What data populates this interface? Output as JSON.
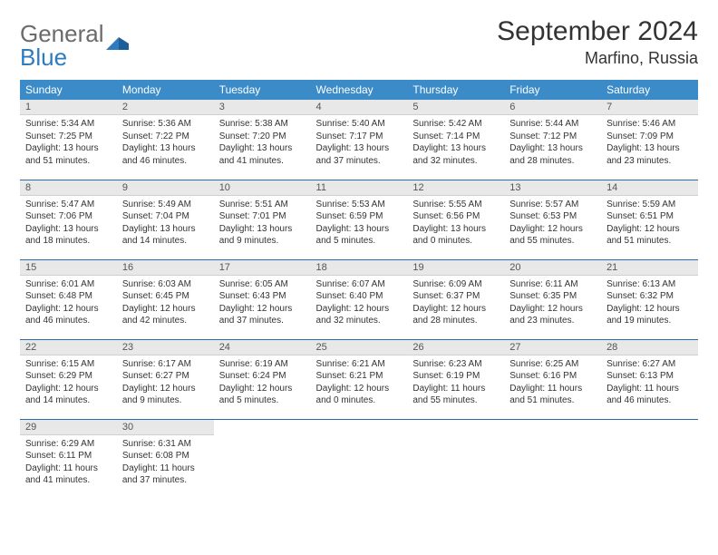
{
  "brand": {
    "name_a": "General",
    "name_b": "Blue"
  },
  "title": "September 2024",
  "location": "Marfino, Russia",
  "colors": {
    "header_bg": "#3b8bc8",
    "header_text": "#ffffff",
    "daynum_bg": "#e8e8e8",
    "row_divider": "#2e6da4",
    "logo_gray": "#6b6b6b",
    "logo_blue": "#2e7cc0"
  },
  "weekdays": [
    "Sunday",
    "Monday",
    "Tuesday",
    "Wednesday",
    "Thursday",
    "Friday",
    "Saturday"
  ],
  "days": [
    {
      "n": 1,
      "sr": "5:34 AM",
      "ss": "7:25 PM",
      "dl": "13 hours and 51 minutes."
    },
    {
      "n": 2,
      "sr": "5:36 AM",
      "ss": "7:22 PM",
      "dl": "13 hours and 46 minutes."
    },
    {
      "n": 3,
      "sr": "5:38 AM",
      "ss": "7:20 PM",
      "dl": "13 hours and 41 minutes."
    },
    {
      "n": 4,
      "sr": "5:40 AM",
      "ss": "7:17 PM",
      "dl": "13 hours and 37 minutes."
    },
    {
      "n": 5,
      "sr": "5:42 AM",
      "ss": "7:14 PM",
      "dl": "13 hours and 32 minutes."
    },
    {
      "n": 6,
      "sr": "5:44 AM",
      "ss": "7:12 PM",
      "dl": "13 hours and 28 minutes."
    },
    {
      "n": 7,
      "sr": "5:46 AM",
      "ss": "7:09 PM",
      "dl": "13 hours and 23 minutes."
    },
    {
      "n": 8,
      "sr": "5:47 AM",
      "ss": "7:06 PM",
      "dl": "13 hours and 18 minutes."
    },
    {
      "n": 9,
      "sr": "5:49 AM",
      "ss": "7:04 PM",
      "dl": "13 hours and 14 minutes."
    },
    {
      "n": 10,
      "sr": "5:51 AM",
      "ss": "7:01 PM",
      "dl": "13 hours and 9 minutes."
    },
    {
      "n": 11,
      "sr": "5:53 AM",
      "ss": "6:59 PM",
      "dl": "13 hours and 5 minutes."
    },
    {
      "n": 12,
      "sr": "5:55 AM",
      "ss": "6:56 PM",
      "dl": "13 hours and 0 minutes."
    },
    {
      "n": 13,
      "sr": "5:57 AM",
      "ss": "6:53 PM",
      "dl": "12 hours and 55 minutes."
    },
    {
      "n": 14,
      "sr": "5:59 AM",
      "ss": "6:51 PM",
      "dl": "12 hours and 51 minutes."
    },
    {
      "n": 15,
      "sr": "6:01 AM",
      "ss": "6:48 PM",
      "dl": "12 hours and 46 minutes."
    },
    {
      "n": 16,
      "sr": "6:03 AM",
      "ss": "6:45 PM",
      "dl": "12 hours and 42 minutes."
    },
    {
      "n": 17,
      "sr": "6:05 AM",
      "ss": "6:43 PM",
      "dl": "12 hours and 37 minutes."
    },
    {
      "n": 18,
      "sr": "6:07 AM",
      "ss": "6:40 PM",
      "dl": "12 hours and 32 minutes."
    },
    {
      "n": 19,
      "sr": "6:09 AM",
      "ss": "6:37 PM",
      "dl": "12 hours and 28 minutes."
    },
    {
      "n": 20,
      "sr": "6:11 AM",
      "ss": "6:35 PM",
      "dl": "12 hours and 23 minutes."
    },
    {
      "n": 21,
      "sr": "6:13 AM",
      "ss": "6:32 PM",
      "dl": "12 hours and 19 minutes."
    },
    {
      "n": 22,
      "sr": "6:15 AM",
      "ss": "6:29 PM",
      "dl": "12 hours and 14 minutes."
    },
    {
      "n": 23,
      "sr": "6:17 AM",
      "ss": "6:27 PM",
      "dl": "12 hours and 9 minutes."
    },
    {
      "n": 24,
      "sr": "6:19 AM",
      "ss": "6:24 PM",
      "dl": "12 hours and 5 minutes."
    },
    {
      "n": 25,
      "sr": "6:21 AM",
      "ss": "6:21 PM",
      "dl": "12 hours and 0 minutes."
    },
    {
      "n": 26,
      "sr": "6:23 AM",
      "ss": "6:19 PM",
      "dl": "11 hours and 55 minutes."
    },
    {
      "n": 27,
      "sr": "6:25 AM",
      "ss": "6:16 PM",
      "dl": "11 hours and 51 minutes."
    },
    {
      "n": 28,
      "sr": "6:27 AM",
      "ss": "6:13 PM",
      "dl": "11 hours and 46 minutes."
    },
    {
      "n": 29,
      "sr": "6:29 AM",
      "ss": "6:11 PM",
      "dl": "11 hours and 41 minutes."
    },
    {
      "n": 30,
      "sr": "6:31 AM",
      "ss": "6:08 PM",
      "dl": "11 hours and 37 minutes."
    }
  ],
  "labels": {
    "sunrise": "Sunrise:",
    "sunset": "Sunset:",
    "daylight": "Daylight:"
  },
  "start_weekday": 0,
  "total_cells": 35
}
